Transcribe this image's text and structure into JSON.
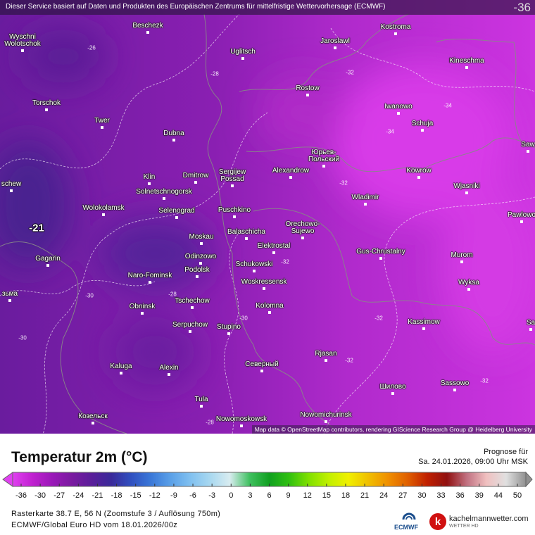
{
  "header": {
    "notice": "Dieser Service basiert auf Daten und Produkten des Europäischen Zentrums für mittelfristige Wettervorhersage (ECMWF)",
    "corner_value": -36
  },
  "map": {
    "cities": [
      "Beschezk",
      "Kostroma",
      "Wyschni Wolotschok",
      "Jaroslawl",
      "Uglitsch",
      "Kineschma",
      "Rostow",
      "Torschok",
      "Iwanowo",
      "Twer",
      "Schuja",
      "Dubna",
      "Юрьев-Польский",
      "Sergijew Possad",
      "Alexandrow",
      "Kowrow",
      "Klin",
      "Dmitrow",
      "Wjasniki",
      "Solnetschnogorsk",
      "Wladimir",
      "Wolokolamsk",
      "Puschkino",
      "Selenograd",
      "Pawlowo",
      "Orechowo-Sujewo",
      "Balaschicha",
      "Moskau",
      "Elektrostal",
      "Gus-Chrustalny",
      "Odinzowo",
      "Murom",
      "Gagarin",
      "Schukowski",
      "Podolsk",
      "Naro-Fominsk",
      "Woskressensk",
      "Wyksa",
      "Obninsk",
      "Tschechow",
      "Kolomna",
      "Serpuchow",
      "Stupino",
      "Kassimow",
      "Rjasan",
      "Kaluga",
      "Alexin",
      "Северный",
      "Шилово",
      "Sassowo",
      "Tula",
      "Козельск",
      "Nowomoskowsk",
      "Nowomichurinsk",
      "Saw",
      "Sa",
      "schew",
      "зьма"
    ],
    "contour_labels": [
      -26,
      -28,
      -32,
      -34,
      -34,
      -32,
      -32,
      -30,
      -32,
      -32,
      -32,
      -28,
      -30,
      -30,
      -28
    ],
    "max_label": -21,
    "attribution": "Map data © OpenStreetMap contributors, rendering GIScience Research Group @ Heidelberg University"
  },
  "legend": {
    "title": "Temperatur 2m (°C)",
    "forecast_label": "Prognose für",
    "forecast_time": "Sa. 24.01.2026, 09:00 Uhr MSK",
    "ticks": [
      -36,
      -30,
      -27,
      -24,
      -21,
      -18,
      -15,
      -12,
      -9,
      -6,
      -3,
      0,
      3,
      6,
      9,
      12,
      15,
      18,
      21,
      24,
      27,
      30,
      33,
      36,
      39,
      44,
      50
    ],
    "colors": [
      "#e040f0",
      "#c020d0",
      "#9a18b8",
      "#7a1aa0",
      "#5a1e9a",
      "#3a2a9a",
      "#3050c0",
      "#3a78d8",
      "#5aa0e8",
      "#80c0f0",
      "#a8d8f0",
      "#d8ecf0",
      "#40c060",
      "#10a020",
      "#30c010",
      "#80e000",
      "#c0f000",
      "#f0f000",
      "#f0c000",
      "#f09000",
      "#e06000",
      "#c02000",
      "#901010",
      "#c07080",
      "#f0c0c0",
      "#e0e0e0",
      "#909090"
    ],
    "info": "Rasterkarte 38.7 E, 56 N (Zoomstufe 3 / Auflösung 750m)",
    "model": "ECMWF/Global Euro HD vom 18.01.2026/00z"
  },
  "logos": {
    "ecmwf": "ECMWF",
    "site": "kachelmannwetter.com",
    "tagline": "WETTER HD"
  }
}
